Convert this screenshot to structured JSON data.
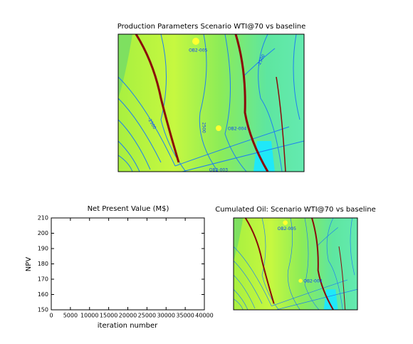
{
  "chart_data": [
    {
      "type": "contour",
      "title": "Production Parameters  Scenario WTI@70 vs baseline",
      "annotations": [
        "OB2-005",
        "OB2-004",
        "-2500",
        "2500",
        "-2500",
        "OB2-003"
      ]
    },
    {
      "type": "line",
      "title": "Net Present Value (M$)",
      "x_label": "iteration number",
      "y_label": "NPV",
      "xlim": [
        0,
        40000
      ],
      "xticks": [
        0,
        5000,
        10000,
        15000,
        20000,
        25000,
        30000,
        35000,
        40000
      ],
      "ylim": [
        150,
        210
      ],
      "yticks": [
        150,
        160,
        170,
        180,
        190,
        200,
        210
      ]
    },
    {
      "type": "contour",
      "title": "Cumulated Oil: Scenario WTI@70 vs baseline",
      "annotations": [
        "OB2-005",
        "OB2-004"
      ]
    }
  ]
}
